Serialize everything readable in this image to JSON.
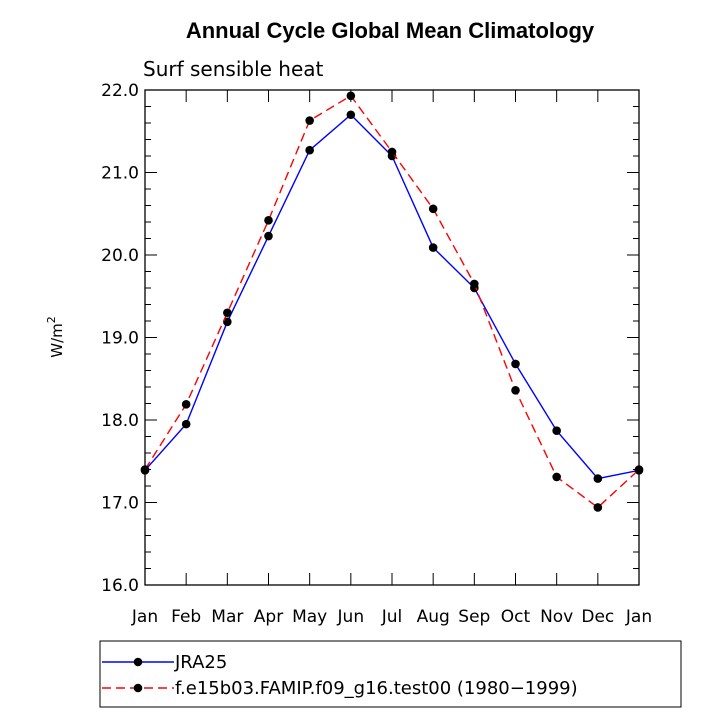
{
  "chart_data": {
    "type": "line",
    "title": "Annual Cycle Global Mean Climatology",
    "subtitle": "Surf sensible heat",
    "ylabel": "W/m",
    "ylabel_superscript": "2",
    "xlabel": "",
    "categories": [
      "Jan",
      "Feb",
      "Mar",
      "Apr",
      "May",
      "Jun",
      "Jul",
      "Aug",
      "Sep",
      "Oct",
      "Nov",
      "Dec",
      "Jan"
    ],
    "ylim": [
      16.0,
      22.0
    ],
    "yticks": [
      "16.0",
      "17.0",
      "18.0",
      "19.0",
      "20.0",
      "21.0",
      "22.0"
    ],
    "grid": false,
    "legend_position": "bottom",
    "series": [
      {
        "name": "JRA25",
        "color": "#0000ff",
        "dash": "solid",
        "marker": "filled-circle",
        "values": [
          17.39,
          17.95,
          19.19,
          20.23,
          21.27,
          21.7,
          21.2,
          20.09,
          19.6,
          18.68,
          17.87,
          17.29,
          17.39
        ]
      },
      {
        "name": "f.e15b03.FAMIP.f09_g16.test00 (1980−1999)",
        "color": "#ff0000",
        "dash": "dashed",
        "marker": "filled-circle",
        "values": [
          17.4,
          18.19,
          19.3,
          20.42,
          21.63,
          21.93,
          21.25,
          20.56,
          19.65,
          18.36,
          17.31,
          16.94,
          17.4
        ]
      }
    ]
  }
}
